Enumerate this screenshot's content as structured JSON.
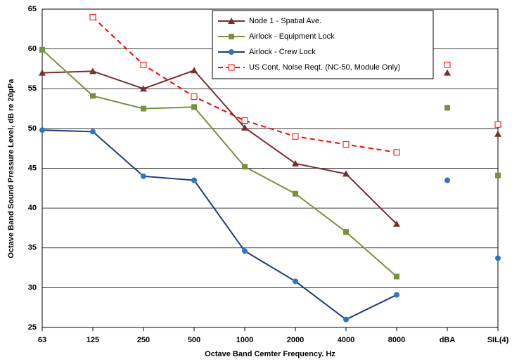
{
  "chart_data": {
    "type": "line",
    "x_label": "Octave Band Cemter Frequency. Hz",
    "y_label": "Octave Band Sound Pressure Level, dB re 20µPa",
    "categories": [
      "63",
      "125",
      "250",
      "500",
      "1000",
      "2000",
      "4000",
      "8000",
      "dBA",
      "SIL(4)"
    ],
    "ylim": [
      25,
      65
    ],
    "yticks": [
      25,
      30,
      35,
      40,
      45,
      50,
      55,
      60,
      65
    ],
    "grid": true,
    "legend": "top-right",
    "series": [
      {
        "name": "Node 1 - Spatial Ave.",
        "color": "#7b2c2c",
        "marker": "triangle",
        "values": [
          57.0,
          57.2,
          55.0,
          57.3,
          50.1,
          45.6,
          44.3,
          38.0,
          57.0,
          49.3
        ]
      },
      {
        "name": "Airlock - Equipment Lock",
        "color": "#76923c",
        "marker": "square",
        "values": [
          59.9,
          54.1,
          52.5,
          52.7,
          45.2,
          41.8,
          37.0,
          31.4,
          52.6,
          44.1
        ]
      },
      {
        "name": "Airlock - Crew Lock",
        "color": "#1f3b7a",
        "marker_color": "#2e75c6",
        "marker": "circle",
        "values": [
          49.8,
          49.6,
          44.0,
          43.5,
          34.6,
          30.8,
          26.0,
          29.1,
          43.5,
          33.7
        ]
      },
      {
        "name": "US Cont. Noise Reqt. (NC-50, Module Only)",
        "color": "#ff0000",
        "marker": "open-square",
        "dashed": true,
        "values": [
          null,
          64.0,
          58.0,
          54.0,
          51.0,
          49.0,
          48.0,
          47.0,
          58.0,
          50.5
        ]
      }
    ]
  }
}
